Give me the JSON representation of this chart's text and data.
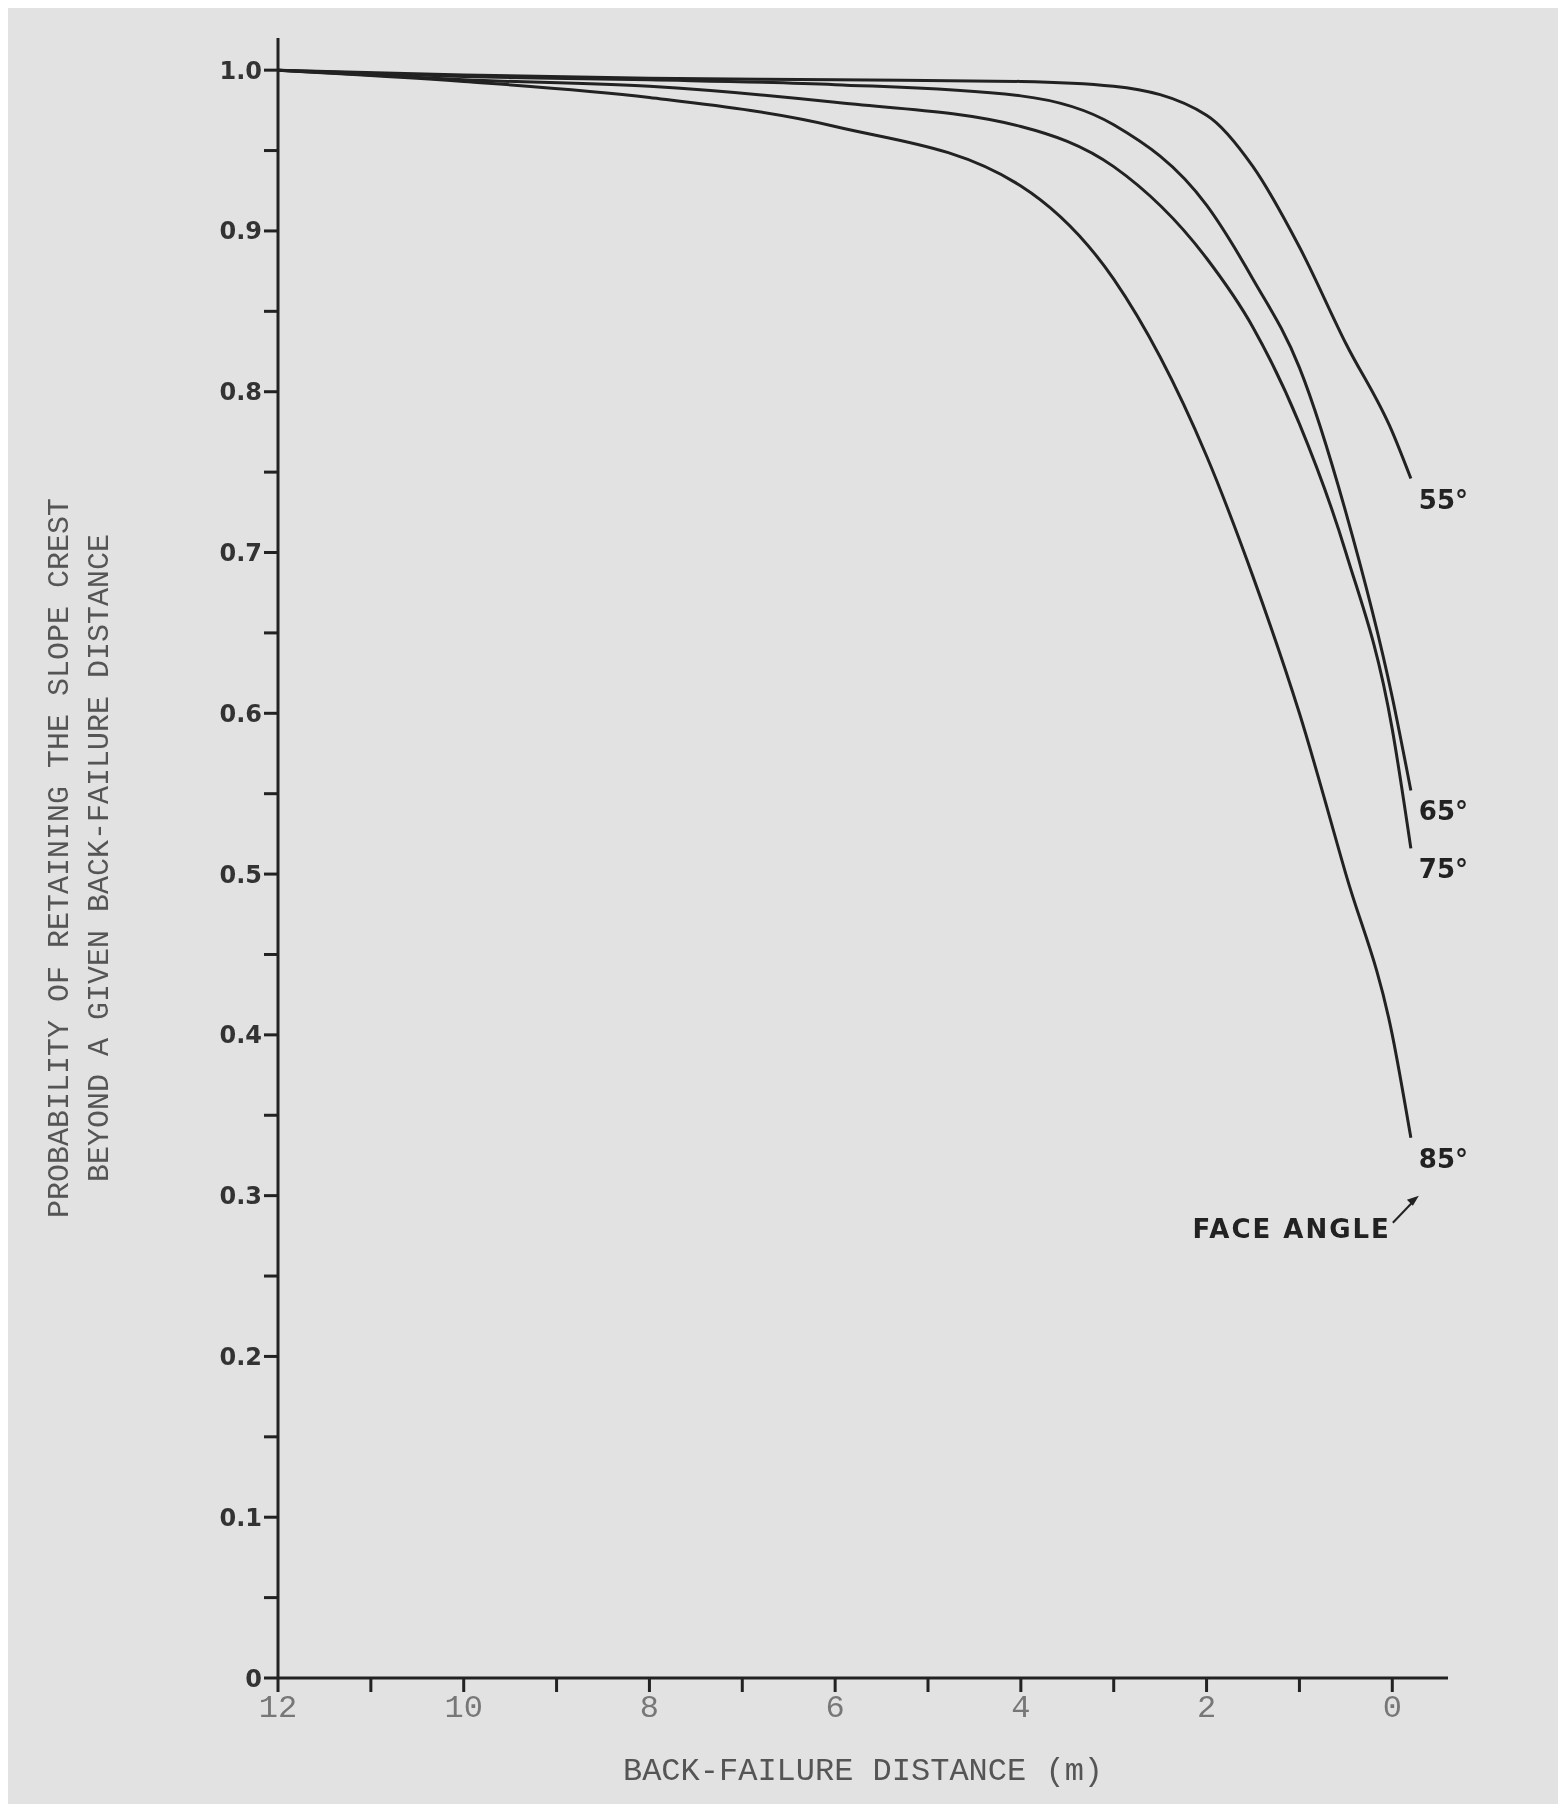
{
  "chart_data": {
    "type": "line",
    "xlabel": "BACK-FAILURE DISTANCE (m)",
    "ylabel": "PROBABILITY OF RETAINING THE SLOPE CREST BEYOND A GIVEN BACK-FAILURE DISTANCE",
    "x": [
      12,
      10,
      8,
      6,
      4,
      3,
      2,
      1.5,
      1,
      0.5,
      0,
      -0.2
    ],
    "series": [
      {
        "name": "55°",
        "color": "#222222",
        "values": [
          1.0,
          0.997,
          0.995,
          0.994,
          0.993,
          0.99,
          0.972,
          0.94,
          0.89,
          0.83,
          0.775,
          0.746
        ]
      },
      {
        "name": "65°",
        "color": "#222222",
        "values": [
          1.0,
          0.996,
          0.994,
          0.991,
          0.984,
          0.966,
          0.916,
          0.87,
          0.815,
          0.725,
          0.61,
          0.552
        ]
      },
      {
        "name": "75°",
        "color": "#222222",
        "values": [
          1.0,
          0.994,
          0.99,
          0.98,
          0.965,
          0.94,
          0.883,
          0.84,
          0.78,
          0.7,
          0.59,
          0.516
        ]
      },
      {
        "name": "85°",
        "color": "#222222",
        "values": [
          1.0,
          0.993,
          0.983,
          0.965,
          0.928,
          0.87,
          0.76,
          0.685,
          0.6,
          0.5,
          0.4,
          0.336
        ]
      }
    ],
    "xlim": [
      12,
      -0.6
    ],
    "xticks": [
      12,
      {
        "value": 11,
        "label": null
      },
      10,
      {
        "value": 9,
        "label": null
      },
      8,
      {
        "value": 7,
        "label": null
      },
      6,
      {
        "value": 5,
        "label": null
      },
      4,
      {
        "value": 3,
        "label": null
      },
      2,
      {
        "value": 1,
        "label": null
      },
      0
    ],
    "ylim": [
      0,
      1.02
    ],
    "yticks": [
      0,
      {
        "value": 0.05,
        "label": null
      },
      0.1,
      {
        "value": 0.15,
        "label": null
      },
      0.2,
      {
        "value": 0.25,
        "label": null
      },
      0.3,
      {
        "value": 0.35,
        "label": null
      },
      0.4,
      {
        "value": 0.45,
        "label": null
      },
      0.5,
      {
        "value": 0.55,
        "label": null
      },
      0.6,
      {
        "value": 0.65,
        "label": null
      },
      0.7,
      {
        "value": 0.75,
        "label": null
      },
      0.8,
      {
        "value": 0.85,
        "label": null
      },
      0.9,
      {
        "value": 0.95,
        "label": null
      },
      {
        "value": 1,
        "label": "1.0"
      }
    ],
    "marker": "none",
    "line_style": "solid",
    "annotations": [
      "FACE ANGLE"
    ]
  }
}
